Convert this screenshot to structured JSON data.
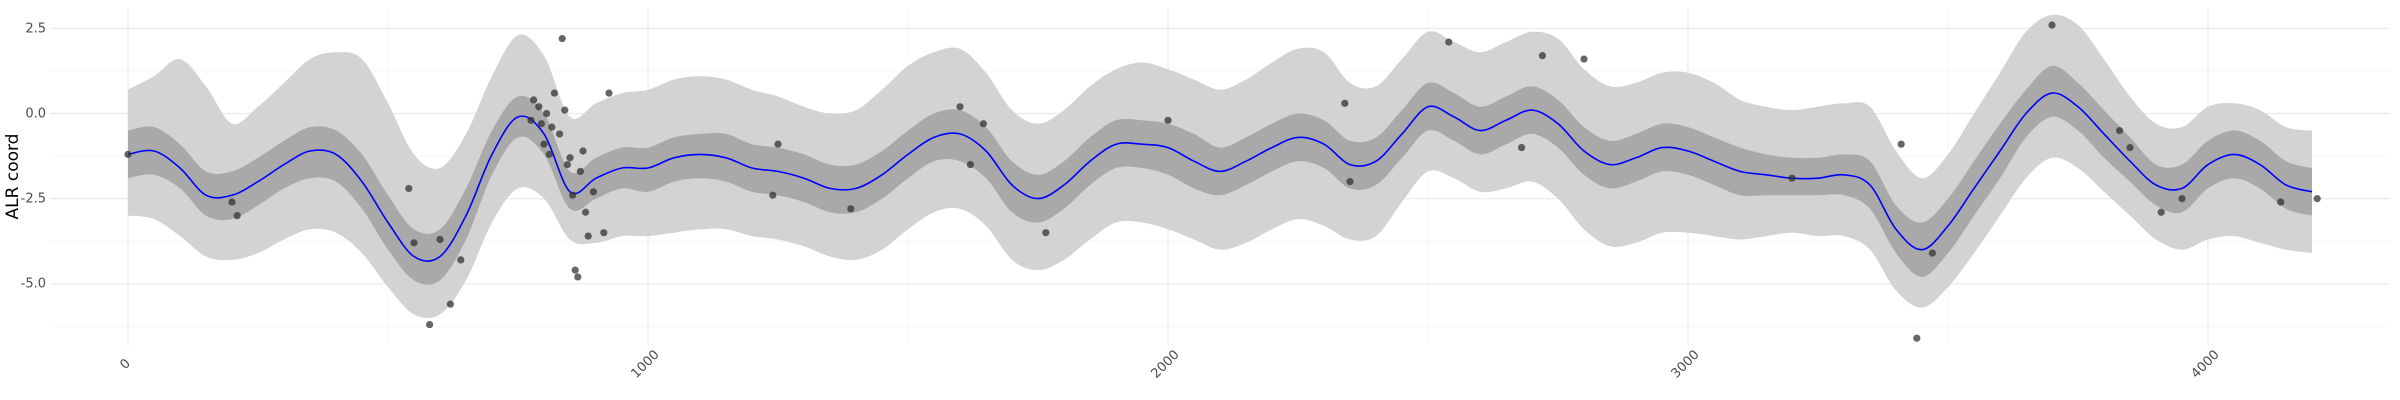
{
  "chart_data": {
    "type": "line",
    "title": "",
    "xlabel": "",
    "ylabel": "ALR coord",
    "xlim": [
      -150,
      4350
    ],
    "ylim": [
      -6.8,
      3.1
    ],
    "x_ticks": [
      0,
      1000,
      2000,
      3000,
      4000
    ],
    "x_tick_labels": [
      "0",
      "1000",
      "2000",
      "3000",
      "4000"
    ],
    "x_tick_rotation": -45,
    "y_ticks": [
      2.5,
      0.0,
      -2.5,
      -5.0
    ],
    "y_tick_labels": [
      "2.5",
      "0.0",
      "-2.5",
      "-5.0"
    ],
    "grid": true,
    "colors": {
      "mean_line": "#0000ff",
      "inner_band": "#a9a9a9",
      "outer_band": "#d3d3d3",
      "points": "#333333",
      "grid": "#ebebeb"
    },
    "series": [
      {
        "kind": "mean",
        "x": [
          0,
          50,
          100,
          150,
          200,
          250,
          300,
          350,
          400,
          450,
          500,
          550,
          600,
          650,
          700,
          750,
          800,
          850,
          900,
          950,
          1000,
          1050,
          1100,
          1150,
          1200,
          1250,
          1300,
          1350,
          1400,
          1450,
          1500,
          1550,
          1600,
          1650,
          1700,
          1750,
          1800,
          1850,
          1900,
          1950,
          2000,
          2050,
          2100,
          2150,
          2200,
          2250,
          2300,
          2350,
          2400,
          2450,
          2500,
          2550,
          2600,
          2650,
          2700,
          2750,
          2800,
          2850,
          2900,
          2950,
          3000,
          3050,
          3100,
          3150,
          3200,
          3250,
          3300,
          3350,
          3400,
          3450,
          3500,
          3550,
          3600,
          3650,
          3700,
          3750,
          3800,
          3850,
          3900,
          3950,
          4000,
          4050,
          4100,
          4150,
          4200
        ],
        "values": [
          -1.2,
          -1.1,
          -1.6,
          -2.4,
          -2.4,
          -2.0,
          -1.5,
          -1.1,
          -1.2,
          -2.0,
          -3.2,
          -4.2,
          -4.2,
          -3.0,
          -1.2,
          -0.1,
          -0.6,
          -2.3,
          -1.9,
          -1.6,
          -1.6,
          -1.3,
          -1.2,
          -1.3,
          -1.6,
          -1.7,
          -1.9,
          -2.2,
          -2.2,
          -1.8,
          -1.2,
          -0.7,
          -0.6,
          -1.1,
          -2.1,
          -2.5,
          -2.1,
          -1.4,
          -0.9,
          -0.9,
          -1.0,
          -1.4,
          -1.7,
          -1.4,
          -1.0,
          -0.7,
          -0.9,
          -1.5,
          -1.4,
          -0.6,
          0.2,
          -0.1,
          -0.5,
          -0.2,
          0.1,
          -0.3,
          -1.1,
          -1.5,
          -1.3,
          -1.0,
          -1.1,
          -1.4,
          -1.7,
          -1.8,
          -1.9,
          -1.9,
          -1.8,
          -2.1,
          -3.4,
          -4.0,
          -3.3,
          -2.2,
          -1.1,
          0.0,
          0.6,
          0.2,
          -0.6,
          -1.4,
          -2.1,
          -2.2,
          -1.5,
          -1.2,
          -1.5,
          -2.1,
          -2.3
        ]
      },
      {
        "kind": "inner_band",
        "x": [
          0,
          50,
          100,
          150,
          200,
          250,
          300,
          350,
          400,
          450,
          500,
          550,
          600,
          650,
          700,
          750,
          800,
          850,
          900,
          950,
          1000,
          1050,
          1100,
          1150,
          1200,
          1250,
          1300,
          1350,
          1400,
          1450,
          1500,
          1550,
          1600,
          1650,
          1700,
          1750,
          1800,
          1850,
          1900,
          1950,
          2000,
          2050,
          2100,
          2150,
          2200,
          2250,
          2300,
          2350,
          2400,
          2450,
          2500,
          2550,
          2600,
          2650,
          2700,
          2750,
          2800,
          2850,
          2900,
          2950,
          3000,
          3050,
          3100,
          3150,
          3200,
          3250,
          3300,
          3350,
          3400,
          3450,
          3500,
          3550,
          3600,
          3650,
          3700,
          3750,
          3800,
          3850,
          3900,
          3950,
          4000,
          4050,
          4100,
          4150,
          4200
        ],
        "lower": [
          -1.9,
          -1.8,
          -2.2,
          -3.0,
          -3.1,
          -2.7,
          -2.2,
          -1.9,
          -2.0,
          -2.8,
          -4.0,
          -4.9,
          -4.9,
          -3.7,
          -1.8,
          -0.7,
          -1.2,
          -2.8,
          -2.5,
          -2.2,
          -2.3,
          -2.0,
          -1.9,
          -2.0,
          -2.3,
          -2.4,
          -2.6,
          -2.9,
          -2.9,
          -2.5,
          -1.9,
          -1.4,
          -1.4,
          -1.9,
          -2.9,
          -3.2,
          -2.8,
          -2.1,
          -1.6,
          -1.6,
          -1.8,
          -2.2,
          -2.4,
          -2.1,
          -1.7,
          -1.4,
          -1.6,
          -2.2,
          -2.1,
          -1.3,
          -0.5,
          -0.8,
          -1.2,
          -0.9,
          -0.6,
          -1.0,
          -1.8,
          -2.2,
          -2.0,
          -1.7,
          -1.8,
          -2.1,
          -2.4,
          -2.4,
          -2.4,
          -2.4,
          -2.4,
          -2.8,
          -4.1,
          -4.8,
          -4.1,
          -3.0,
          -1.9,
          -0.7,
          -0.1,
          -0.5,
          -1.3,
          -2.0,
          -2.7,
          -2.9,
          -2.2,
          -1.9,
          -2.2,
          -2.8,
          -3.0
        ],
        "upper": [
          -0.5,
          -0.4,
          -0.9,
          -1.7,
          -1.7,
          -1.3,
          -0.8,
          -0.4,
          -0.5,
          -1.2,
          -2.4,
          -3.4,
          -3.4,
          -2.2,
          -0.5,
          0.5,
          0.0,
          -1.7,
          -1.3,
          -1.0,
          -1.0,
          -0.7,
          -0.6,
          -0.6,
          -0.9,
          -1.0,
          -1.2,
          -1.5,
          -1.5,
          -1.1,
          -0.5,
          0.0,
          0.1,
          -0.4,
          -1.4,
          -1.8,
          -1.4,
          -0.7,
          -0.2,
          -0.2,
          -0.3,
          -0.6,
          -1.0,
          -0.7,
          -0.3,
          0.0,
          -0.2,
          -0.8,
          -0.7,
          0.1,
          0.9,
          0.6,
          0.2,
          0.5,
          0.8,
          0.4,
          -0.4,
          -0.8,
          -0.6,
          -0.3,
          -0.4,
          -0.7,
          -1.0,
          -1.2,
          -1.3,
          -1.3,
          -1.2,
          -1.4,
          -2.7,
          -3.2,
          -2.5,
          -1.4,
          -0.3,
          0.7,
          1.4,
          0.9,
          0.1,
          -0.7,
          -1.5,
          -1.5,
          -0.8,
          -0.5,
          -0.8,
          -1.4,
          -1.6
        ]
      },
      {
        "kind": "outer_band",
        "x": [
          0,
          50,
          100,
          150,
          200,
          250,
          300,
          350,
          400,
          450,
          500,
          550,
          600,
          650,
          700,
          750,
          800,
          850,
          900,
          950,
          1000,
          1050,
          1100,
          1150,
          1200,
          1250,
          1300,
          1350,
          1400,
          1450,
          1500,
          1550,
          1600,
          1650,
          1700,
          1750,
          1800,
          1850,
          1900,
          1950,
          2000,
          2050,
          2100,
          2150,
          2200,
          2250,
          2300,
          2350,
          2400,
          2450,
          2500,
          2550,
          2600,
          2650,
          2700,
          2750,
          2800,
          2850,
          2900,
          2950,
          3000,
          3050,
          3100,
          3150,
          3200,
          3250,
          3300,
          3350,
          3400,
          3450,
          3500,
          3550,
          3600,
          3650,
          3700,
          3750,
          3800,
          3850,
          3900,
          3950,
          4000,
          4050,
          4100,
          4150,
          4200
        ],
        "lower": [
          -3.0,
          -3.1,
          -3.6,
          -4.2,
          -4.3,
          -4.1,
          -3.7,
          -3.4,
          -3.5,
          -4.1,
          -5.1,
          -5.9,
          -5.9,
          -4.9,
          -3.2,
          -2.2,
          -2.5,
          -3.7,
          -3.8,
          -3.6,
          -3.6,
          -3.5,
          -3.4,
          -3.4,
          -3.6,
          -3.7,
          -3.9,
          -4.2,
          -4.3,
          -4.0,
          -3.4,
          -2.9,
          -2.8,
          -3.3,
          -4.3,
          -4.6,
          -4.3,
          -3.7,
          -3.2,
          -3.2,
          -3.4,
          -3.7,
          -4.0,
          -3.8,
          -3.4,
          -3.1,
          -3.3,
          -3.7,
          -3.6,
          -2.6,
          -1.7,
          -1.9,
          -2.3,
          -2.2,
          -2.0,
          -2.5,
          -3.4,
          -3.9,
          -3.8,
          -3.5,
          -3.5,
          -3.6,
          -3.7,
          -3.6,
          -3.5,
          -3.6,
          -3.6,
          -4.0,
          -5.2,
          -5.7,
          -5.1,
          -4.1,
          -3.0,
          -1.9,
          -1.3,
          -1.6,
          -2.3,
          -3.0,
          -3.7,
          -4.0,
          -3.7,
          -3.6,
          -3.8,
          -4.0,
          -4.1
        ],
        "upper": [
          0.7,
          1.1,
          1.6,
          0.8,
          -0.3,
          0.2,
          0.9,
          1.6,
          1.8,
          1.6,
          0.3,
          -1.2,
          -1.6,
          -0.6,
          1.1,
          2.3,
          1.7,
          -0.1,
          0.3,
          0.6,
          0.7,
          1.0,
          1.1,
          1.0,
          0.7,
          0.5,
          0.2,
          0.0,
          0.1,
          0.7,
          1.4,
          1.8,
          1.9,
          1.2,
          0.1,
          -0.3,
          0.1,
          0.8,
          1.3,
          1.5,
          1.3,
          1.0,
          0.7,
          1.0,
          1.5,
          1.9,
          1.8,
          0.9,
          0.8,
          1.6,
          2.4,
          2.1,
          1.8,
          2.1,
          2.4,
          2.2,
          1.3,
          0.8,
          0.9,
          1.2,
          1.2,
          0.9,
          0.4,
          0.2,
          0.1,
          0.2,
          0.3,
          0.2,
          -1.1,
          -1.9,
          -1.2,
          0.0,
          1.2,
          2.4,
          2.9,
          2.6,
          1.6,
          0.5,
          -0.3,
          -0.4,
          0.2,
          0.3,
          0.1,
          -0.4,
          -0.5
        ]
      }
    ],
    "points": [
      {
        "x": 0,
        "y": -1.2
      },
      {
        "x": 200,
        "y": -2.6
      },
      {
        "x": 210,
        "y": -3.0
      },
      {
        "x": 540,
        "y": -2.2
      },
      {
        "x": 550,
        "y": -3.8
      },
      {
        "x": 580,
        "y": -6.2
      },
      {
        "x": 600,
        "y": -3.7
      },
      {
        "x": 620,
        "y": -5.6
      },
      {
        "x": 640,
        "y": -4.3
      },
      {
        "x": 775,
        "y": -0.2
      },
      {
        "x": 780,
        "y": 0.4
      },
      {
        "x": 790,
        "y": 0.2
      },
      {
        "x": 795,
        "y": -0.3
      },
      {
        "x": 800,
        "y": -0.9
      },
      {
        "x": 805,
        "y": 0.0
      },
      {
        "x": 810,
        "y": -1.2
      },
      {
        "x": 815,
        "y": -0.4
      },
      {
        "x": 820,
        "y": 0.6
      },
      {
        "x": 830,
        "y": -0.6
      },
      {
        "x": 835,
        "y": 2.2
      },
      {
        "x": 840,
        "y": 0.1
      },
      {
        "x": 845,
        "y": -1.5
      },
      {
        "x": 850,
        "y": -1.3
      },
      {
        "x": 855,
        "y": -2.4
      },
      {
        "x": 860,
        "y": -4.6
      },
      {
        "x": 865,
        "y": -4.8
      },
      {
        "x": 870,
        "y": -1.7
      },
      {
        "x": 875,
        "y": -1.1
      },
      {
        "x": 880,
        "y": -2.9
      },
      {
        "x": 885,
        "y": -3.6
      },
      {
        "x": 895,
        "y": -2.3
      },
      {
        "x": 915,
        "y": -3.5
      },
      {
        "x": 925,
        "y": 0.6
      },
      {
        "x": 1240,
        "y": -2.4
      },
      {
        "x": 1250,
        "y": -0.9
      },
      {
        "x": 1390,
        "y": -2.8
      },
      {
        "x": 1600,
        "y": 0.2
      },
      {
        "x": 1620,
        "y": -1.5
      },
      {
        "x": 1645,
        "y": -0.3
      },
      {
        "x": 1765,
        "y": -3.5
      },
      {
        "x": 2000,
        "y": -0.2
      },
      {
        "x": 2340,
        "y": 0.3
      },
      {
        "x": 2350,
        "y": -2.0
      },
      {
        "x": 2540,
        "y": 2.1
      },
      {
        "x": 2680,
        "y": -1.0
      },
      {
        "x": 2720,
        "y": 1.7
      },
      {
        "x": 2800,
        "y": 1.6
      },
      {
        "x": 3200,
        "y": -1.9
      },
      {
        "x": 3410,
        "y": -0.9
      },
      {
        "x": 3440,
        "y": -6.6
      },
      {
        "x": 3470,
        "y": -4.1
      },
      {
        "x": 3700,
        "y": 2.6
      },
      {
        "x": 3830,
        "y": -0.5
      },
      {
        "x": 3850,
        "y": -1.0
      },
      {
        "x": 3910,
        "y": -2.9
      },
      {
        "x": 3950,
        "y": -2.5
      },
      {
        "x": 4140,
        "y": -2.6
      },
      {
        "x": 4210,
        "y": -2.5
      }
    ]
  }
}
